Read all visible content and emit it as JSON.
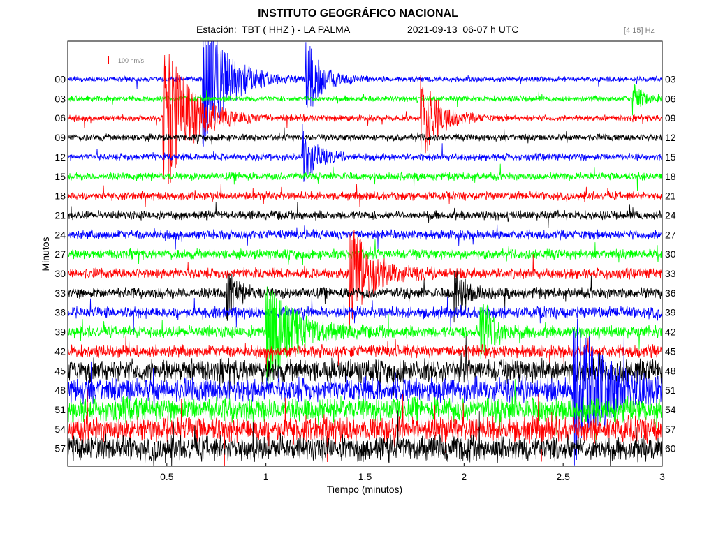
{
  "header": {
    "title": "INSTITUTO GEOGRÁFICO NACIONAL",
    "station_text": "Estación:  TBT ( HHZ ) - LA PALMA",
    "date_text": "2021-09-13  06-07 h UTC",
    "filter_text": "[4 15] Hz"
  },
  "chart_data": {
    "type": "line",
    "xlabel": "Tiempo (minutos)",
    "ylabel": "Minutos",
    "xlim": [
      0,
      3
    ],
    "x_ticks": [
      "0.5",
      "1",
      "1.5",
      "2",
      "2.5",
      "3"
    ],
    "x_tick_values": [
      0.5,
      1,
      1.5,
      2,
      2.5,
      3
    ],
    "left_ticks": [
      "00",
      "03",
      "06",
      "09",
      "12",
      "15",
      "18",
      "21",
      "24",
      "27",
      "30",
      "33",
      "36",
      "39",
      "42",
      "45",
      "48",
      "51",
      "54",
      "57"
    ],
    "right_ticks": [
      "03",
      "06",
      "09",
      "12",
      "15",
      "18",
      "21",
      "24",
      "27",
      "30",
      "33",
      "36",
      "39",
      "42",
      "45",
      "48",
      "51",
      "54",
      "57",
      "60"
    ],
    "scale_label": "100 nm/s",
    "scale_color": "#ff0000",
    "grid": false,
    "trace_colors": [
      "#0000ff",
      "#00ff00",
      "#ff0000",
      "#000000"
    ],
    "events": [
      {
        "x": 0.48,
        "row": 2,
        "amp": 130,
        "decay": 0.12,
        "color": "#ff0000"
      },
      {
        "x": 0.68,
        "row": 0,
        "amp": 110,
        "decay": 0.12,
        "color": "#0000ff"
      },
      {
        "x": 0.8,
        "row": 11,
        "amp": 40,
        "decay": 0.05,
        "color": "#000000"
      },
      {
        "x": 1.0,
        "row": 13,
        "amp": 90,
        "decay": 0.12,
        "color": "#00ff00"
      },
      {
        "x": 1.18,
        "row": 4,
        "amp": 50,
        "decay": 0.06,
        "color": "#0000ff"
      },
      {
        "x": 1.2,
        "row": 0,
        "amp": 60,
        "decay": 0.07,
        "color": "#0000ff"
      },
      {
        "x": 1.42,
        "row": 10,
        "amp": 80,
        "decay": 0.1,
        "color": "#ff0000"
      },
      {
        "x": 1.78,
        "row": 2,
        "amp": 70,
        "decay": 0.08,
        "color": "#ff0000"
      },
      {
        "x": 1.95,
        "row": 11,
        "amp": 40,
        "decay": 0.05,
        "color": "#000000"
      },
      {
        "x": 2.08,
        "row": 13,
        "amp": 60,
        "decay": 0.06,
        "color": "#ff0000"
      },
      {
        "x": 2.55,
        "row": 16,
        "amp": 110,
        "decay": 0.15,
        "color": "#0000ff"
      },
      {
        "x": 2.85,
        "row": 1,
        "amp": 25,
        "decay": 0.05,
        "color": "#00ff00"
      }
    ]
  }
}
